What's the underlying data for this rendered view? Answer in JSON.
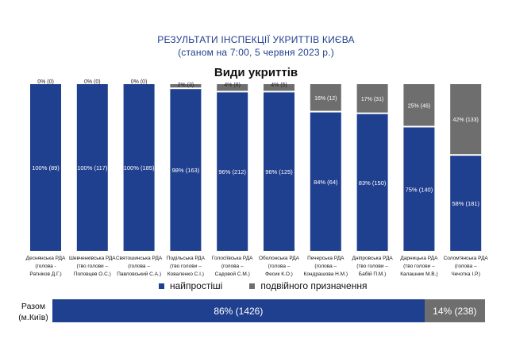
{
  "header": {
    "title_line1": "РЕЗУЛЬТАТИ ІНСПЕКЦІЇ УКРИТТІВ КИЄВА",
    "title_line2": "(станом на 7:00, 5 червня 2023 р.)"
  },
  "colors": {
    "simplest": "#1f3f8f",
    "dual": "#6e6e6e",
    "title": "#1f3f8f"
  },
  "chart_data": {
    "type": "bar",
    "stacked": true,
    "normalized": true,
    "title": "Види укриттів",
    "categories": [
      [
        "Деснянська РДА",
        "(голова -",
        "Ратніков Д.Г.)"
      ],
      [
        "Шевченківська РДА",
        "(тво голови –",
        "Поповцев О.С.)"
      ],
      [
        "Святошинська РДА",
        "(голова –",
        "Павловський С.А.)"
      ],
      [
        "Подільська РДА",
        "(тво голови –",
        "Коваленко С.І.)"
      ],
      [
        "Голосіївська РДА",
        "(голова –",
        "Садовой С.М.)"
      ],
      [
        "Оболонська РДА",
        "(голова –",
        "Фесик К.О.)"
      ],
      [
        "Печерська РДА",
        "(голова –",
        "Кондрашова Н.М.)"
      ],
      [
        "Дніпровська РДА",
        "(тво голови –",
        "Бабій П.М.)"
      ],
      [
        "Дарницька РДА",
        "(тво голови –",
        "Калашник М.В.)"
      ],
      [
        "Солом'янська РДА",
        "(голова –",
        "Чечотка І.Р.)"
      ]
    ],
    "series": [
      {
        "name": "найпростіші",
        "percent": [
          100,
          100,
          100,
          98,
          96,
          96,
          84,
          83,
          75,
          58
        ],
        "counts": [
          89,
          117,
          185,
          163,
          212,
          125,
          64,
          150,
          140,
          181
        ],
        "labels": [
          "100% (89)",
          "100% (117)",
          "100% (185)",
          "98% (163)",
          "96% (212)",
          "96% (125)",
          "84% (64)",
          "83% (150)",
          "75% (140)",
          "58% (181)"
        ]
      },
      {
        "name": "подвійного призначення",
        "percent": [
          0,
          0,
          0,
          2,
          4,
          4,
          16,
          17,
          25,
          42
        ],
        "counts": [
          0,
          0,
          0,
          3,
          8,
          5,
          12,
          31,
          46,
          133
        ],
        "labels": [
          "0% (0)",
          "0% (0)",
          "0% (0)",
          "2% (3)",
          "4% (8)",
          "4% (5)",
          "16% (12)",
          "17% (31)",
          "25% (46)",
          "42% (133)"
        ]
      }
    ],
    "ylim": [
      0,
      100
    ],
    "legend_position": "bottom",
    "total": {
      "label": "Разом (м.Київ)",
      "simplest_percent": 86,
      "simplest_count": 1426,
      "simplest_label": "86% (1426)",
      "dual_percent": 14,
      "dual_count": 238,
      "dual_label": "14% (238)"
    }
  }
}
